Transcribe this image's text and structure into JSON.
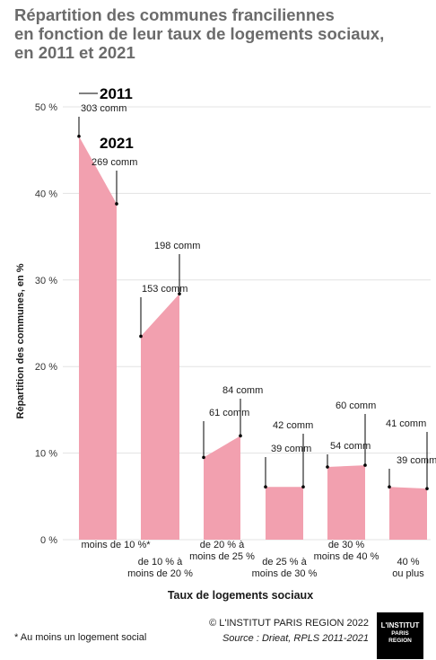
{
  "title_lines": [
    "Répartition des communes franciliennes",
    "en fonction de leur taux de logements sociaux,",
    "en 2011 et 2021"
  ],
  "chart_data": {
    "type": "area",
    "title": "Répartition des communes franciliennes en fonction de leur taux de logements sociaux, en 2011 et 2021",
    "xlabel": "Taux de logements sociaux",
    "ylabel": "Répartition des communes, en %",
    "ylim": [
      0,
      50
    ],
    "yticks": [
      "0 %",
      "10 %",
      "20 %",
      "30 %",
      "40 %",
      "50 %"
    ],
    "grid": true,
    "categories": [
      [
        "moins de 10 %*"
      ],
      [
        "de 10 % à",
        "moins de 20 %"
      ],
      [
        "de 20 % à",
        "moins de 25 %"
      ],
      [
        "de 25 % à",
        "moins de 30 %"
      ],
      [
        "de 30 %",
        "moins de 40 %"
      ],
      [
        "40 %",
        "ou plus"
      ]
    ],
    "series": [
      {
        "name": "2011",
        "values": [
          46.6,
          23.5,
          9.5,
          6.1,
          8.4,
          6.1
        ],
        "labels": [
          "303 comm",
          "153 comm",
          "61 comm",
          "39 comm",
          "54 comm",
          "39 comm"
        ]
      },
      {
        "name": "2021",
        "values": [
          38.8,
          28.4,
          12.0,
          6.1,
          8.6,
          5.9
        ],
        "labels": [
          "269 comm",
          "198 comm",
          "84 comm",
          "42 comm",
          "60 comm",
          "41 comm"
        ]
      }
    ],
    "colors": {
      "area": "#f2a0af",
      "grid": "#e3e3e3",
      "axis_text": "#333333"
    }
  },
  "footnote": "* Au moins un logement social",
  "credit": "© L'INSTITUT PARIS REGION 2022",
  "source": "Source : Driea t, RPLS 2011-2021",
  "logo": {
    "line1": "L'INSTITUT",
    "line2": "PARIS",
    "line3": "REGION"
  }
}
